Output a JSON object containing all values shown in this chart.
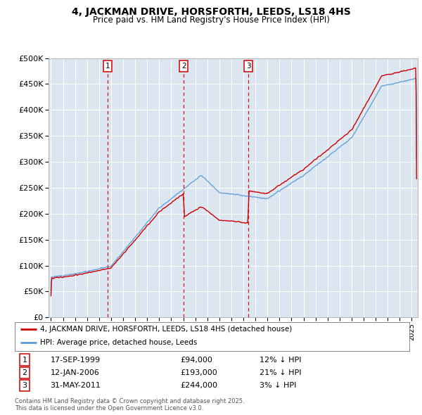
{
  "title1": "4, JACKMAN DRIVE, HORSFORTH, LEEDS, LS18 4HS",
  "title2": "Price paid vs. HM Land Registry's House Price Index (HPI)",
  "plot_bg": "#dce6f1",
  "ylim": [
    0,
    500000
  ],
  "yticks": [
    0,
    50000,
    100000,
    150000,
    200000,
    250000,
    300000,
    350000,
    400000,
    450000,
    500000
  ],
  "ytick_labels": [
    "£0",
    "£50K",
    "£100K",
    "£150K",
    "£200K",
    "£250K",
    "£300K",
    "£350K",
    "£400K",
    "£450K",
    "£500K"
  ],
  "xlim_start": 1994.8,
  "xlim_end": 2025.5,
  "sale_dates": [
    1999.71,
    2006.04,
    2011.41
  ],
  "sale_prices": [
    94000,
    193000,
    244000
  ],
  "sale_labels": [
    "1",
    "2",
    "3"
  ],
  "sale_date_strs": [
    "17-SEP-1999",
    "12-JAN-2006",
    "31-MAY-2011"
  ],
  "sale_price_strs": [
    "£94,000",
    "£193,000",
    "£244,000"
  ],
  "sale_hpi_strs": [
    "12% ↓ HPI",
    "21% ↓ HPI",
    "3% ↓ HPI"
  ],
  "legend_line1": "4, JACKMAN DRIVE, HORSFORTH, LEEDS, LS18 4HS (detached house)",
  "legend_line2": "HPI: Average price, detached house, Leeds",
  "footer": "Contains HM Land Registry data © Crown copyright and database right 2025.\nThis data is licensed under the Open Government Licence v3.0.",
  "red_color": "#cc0000",
  "blue_color": "#5b9bd5",
  "dashed_color": "#cc0000",
  "title_fontsize": 10,
  "subtitle_fontsize": 8.5
}
